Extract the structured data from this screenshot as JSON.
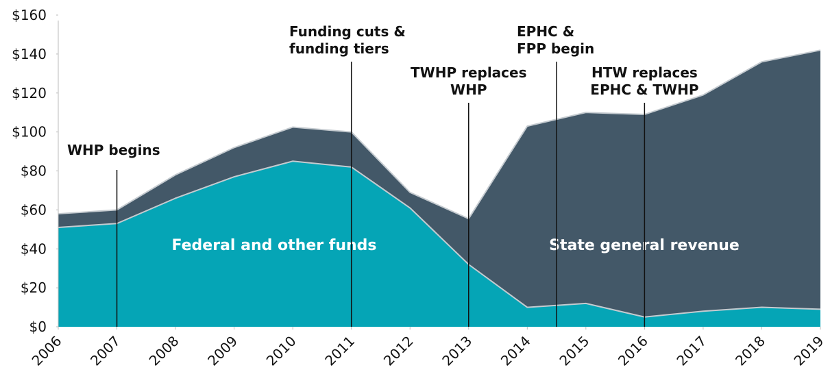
{
  "chart_data": {
    "type": "stacked_area",
    "x": [
      2006,
      2007,
      2008,
      2009,
      2010,
      2011,
      2012,
      2013,
      2014,
      2015,
      2016,
      2017,
      2018,
      2019
    ],
    "series": [
      {
        "name": "Federal and other funds",
        "color": "#05a5b6",
        "values": [
          51,
          53,
          66,
          77,
          85,
          82,
          61,
          32,
          10,
          12,
          5,
          8,
          10,
          9
        ]
      },
      {
        "name": "State general revenue",
        "color": "#435868",
        "values": [
          7,
          7,
          12,
          15,
          17.5,
          18,
          8,
          23.5,
          93,
          98,
          104,
          111,
          126,
          133
        ]
      }
    ],
    "xlim": [
      2006,
      2019
    ],
    "xticks": [
      2006,
      2007,
      2008,
      2009,
      2010,
      2011,
      2012,
      2013,
      2014,
      2015,
      2016,
      2017,
      2018,
      2019
    ],
    "ylim": [
      0,
      160
    ],
    "yticks": [
      {
        "value": 0,
        "label": "$0"
      },
      {
        "value": 20,
        "label": "$20"
      },
      {
        "value": 40,
        "label": "$40"
      },
      {
        "value": 60,
        "label": "$60"
      },
      {
        "value": 80,
        "label": "$80"
      },
      {
        "value": 100,
        "label": "$100"
      },
      {
        "value": 120,
        "label": "$120"
      },
      {
        "value": 140,
        "label": "$140"
      },
      {
        "value": 160,
        "label": "$160"
      }
    ],
    "grid": false,
    "annotations": [
      {
        "x": 2007,
        "lines": [
          "WHP begins"
        ]
      },
      {
        "x": 2011,
        "lines": [
          "Funding cuts &",
          "funding tiers"
        ]
      },
      {
        "x": 2013,
        "lines": [
          "TWHP replaces",
          "WHP"
        ]
      },
      {
        "x": 2014.5,
        "lines": [
          "EPHC &",
          "FPP begin"
        ]
      },
      {
        "x": 2016,
        "lines": [
          "HTW replaces",
          "EPHC & TWHP"
        ]
      }
    ]
  }
}
